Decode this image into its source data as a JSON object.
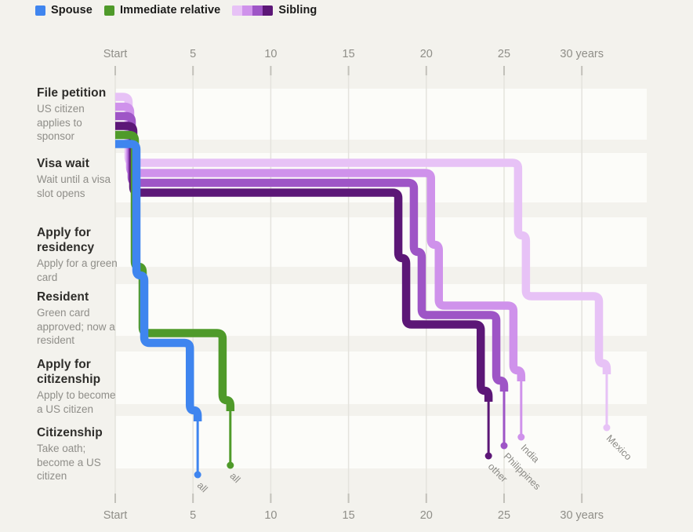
{
  "legend": {
    "items": [
      {
        "id": "spouse",
        "label": "Spouse",
        "swatches": [
          "#3f85ef"
        ]
      },
      {
        "id": "immediate-relative",
        "label": "Immediate relative",
        "swatches": [
          "#4f9a2a"
        ]
      },
      {
        "id": "sibling",
        "label": "Sibling",
        "swatches": [
          "#e7c2f6",
          "#cf92eb",
          "#9e55c6",
          "#5c1777"
        ]
      }
    ]
  },
  "stages": [
    {
      "title": "File petition",
      "subtitle": "US citizen applies to sponsor"
    },
    {
      "title": "Visa wait",
      "subtitle": "Wait until a visa slot opens"
    },
    {
      "title": "Apply for residency",
      "subtitle": "Apply for a green card"
    },
    {
      "title": "Resident",
      "subtitle": "Green card approved; now a resident"
    },
    {
      "title": "Apply for citizenship",
      "subtitle": "Apply to become a US citizen"
    },
    {
      "title": "Citizenship",
      "subtitle": "Take oath; become a US citizen"
    }
  ],
  "chart_data": {
    "type": "flow-timeline",
    "title": "",
    "xlabel_unit": "years",
    "x_axis": {
      "tick_years": [
        0,
        5,
        10,
        15,
        20,
        25,
        30
      ],
      "tick_labels": [
        "Start",
        "5",
        "10",
        "15",
        "20",
        "25",
        "30 years"
      ],
      "shown_top_and_bottom": true,
      "xlim": [
        0,
        34
      ]
    },
    "stage_rows": [
      "File petition",
      "Visa wait",
      "Apply for residency",
      "Resident",
      "Apply for citizenship",
      "Citizenship"
    ],
    "flows": [
      {
        "id": "sibling-mexico",
        "group": "Sibling",
        "end_label": "Mexico",
        "color": "#e7c2f6",
        "petition_end_yr": 1.1,
        "visa_wait_end_yr": 25.9,
        "resident_end_yr": 31.1,
        "citizenship_yr": 31.6
      },
      {
        "id": "sibling-india",
        "group": "Sibling",
        "end_label": "India",
        "color": "#cf92eb",
        "petition_end_yr": 1.1,
        "visa_wait_end_yr": 20.3,
        "resident_end_yr": 25.6,
        "citizenship_yr": 26.1
      },
      {
        "id": "sibling-philippines",
        "group": "Sibling",
        "end_label": "Philippines",
        "color": "#9e55c6",
        "petition_end_yr": 1.1,
        "visa_wait_end_yr": 19.2,
        "resident_end_yr": 24.5,
        "citizenship_yr": 25.0
      },
      {
        "id": "sibling-other",
        "group": "Sibling",
        "end_label": "other",
        "color": "#5c1777",
        "petition_end_yr": 1.1,
        "visa_wait_end_yr": 18.2,
        "resident_end_yr": 23.5,
        "citizenship_yr": 24.0
      },
      {
        "id": "immediate-relative-all",
        "group": "Immediate relative",
        "end_label": "all",
        "color": "#4f9a2a",
        "petition_end_yr": 1.1,
        "visa_wait_end_yr": null,
        "resident_end_yr": 6.9,
        "citizenship_yr": 7.4
      },
      {
        "id": "spouse-all",
        "group": "Spouse",
        "end_label": "all",
        "color": "#3f85ef",
        "petition_end_yr": 1.1,
        "visa_wait_end_yr": null,
        "resident_end_yr": 4.8,
        "citizenship_yr": 5.3
      }
    ],
    "colors": {
      "background": "#f3f2ed",
      "row_band": "#fcfcf9",
      "gridline": "#e4e3dd",
      "tick": "#c2c1ba",
      "axis_text": "#8f8e88",
      "end_label_text": "#8b8a85"
    }
  }
}
